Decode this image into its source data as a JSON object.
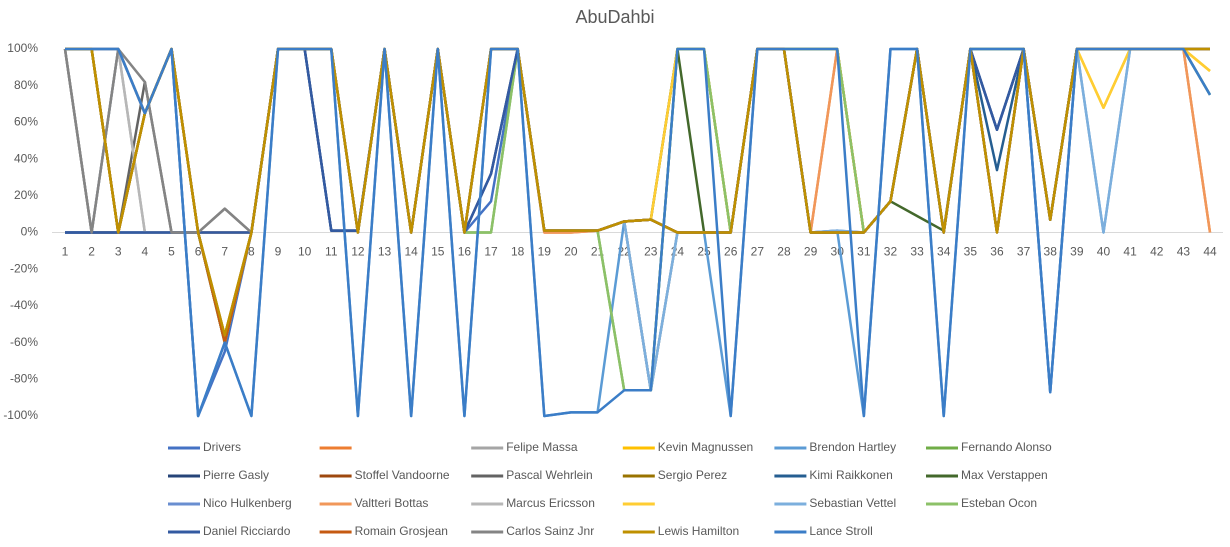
{
  "chart_data": {
    "type": "line",
    "title": "AbuDahbi",
    "categories": [
      1,
      2,
      3,
      4,
      5,
      6,
      7,
      8,
      9,
      10,
      11,
      12,
      13,
      14,
      15,
      16,
      17,
      18,
      19,
      20,
      21,
      22,
      23,
      24,
      25,
      26,
      27,
      28,
      29,
      30,
      31,
      32,
      33,
      34,
      35,
      36,
      37,
      38,
      39,
      40,
      41,
      42,
      43,
      44
    ],
    "ylim": [
      -100,
      100
    ],
    "yticks": [
      {
        "value": -100,
        "label": "-100%"
      },
      {
        "value": -80,
        "label": "-80%"
      },
      {
        "value": -60,
        "label": "-60%"
      },
      {
        "value": -40,
        "label": "-40%"
      },
      {
        "value": -20,
        "label": "-20%"
      },
      {
        "value": 0,
        "label": "0%"
      },
      {
        "value": 20,
        "label": "20%"
      },
      {
        "value": 40,
        "label": "40%"
      },
      {
        "value": 60,
        "label": "60%"
      },
      {
        "value": 80,
        "label": "80%"
      },
      {
        "value": 100,
        "label": "100%"
      }
    ],
    "grid": false,
    "legend": "bottom",
    "series": [
      {
        "name": "Drivers",
        "color": "#4472C4",
        "values": [
          0,
          0,
          100,
          65,
          100,
          -100,
          -65,
          0,
          100,
          100,
          1,
          1,
          100,
          0,
          100,
          0,
          17,
          100,
          1,
          1,
          1,
          6,
          -86,
          100,
          100,
          0,
          100,
          100,
          100,
          100,
          0,
          17,
          100,
          0,
          100,
          56,
          100,
          -87,
          100,
          100,
          100,
          100,
          100,
          75
        ]
      },
      {
        "name": null,
        "color": "#ED7D31",
        "values": [
          100,
          100,
          100,
          65,
          100,
          0,
          0,
          0,
          100,
          100,
          100,
          0,
          100,
          0,
          100,
          0,
          100,
          100,
          0,
          0,
          1,
          6,
          7,
          0,
          0,
          0,
          100,
          100,
          0,
          100,
          0,
          17,
          100,
          0,
          100,
          0,
          100,
          7,
          100,
          100,
          100,
          100,
          100,
          0
        ]
      },
      {
        "name": "Felipe Massa",
        "color": "#A5A5A5",
        "values": [
          100,
          0,
          100,
          0,
          0,
          0,
          0,
          0,
          100,
          100,
          100,
          0,
          100,
          0,
          100,
          0,
          100,
          100,
          1,
          1,
          1,
          6,
          -86,
          0,
          0,
          0,
          100,
          100,
          0,
          0,
          0,
          17,
          100,
          0,
          100,
          100,
          100,
          7,
          100,
          100,
          100,
          100,
          100,
          100
        ]
      },
      {
        "name": "Kevin Magnussen",
        "color": "#FFC000",
        "values": [
          100,
          100,
          0,
          65,
          100,
          0,
          -60,
          0,
          100,
          100,
          100,
          0,
          100,
          0,
          100,
          0,
          100,
          100,
          1,
          1,
          1,
          6,
          7,
          100,
          100,
          0,
          100,
          100,
          100,
          100,
          0,
          17,
          100,
          0,
          100,
          100,
          100,
          7,
          100,
          68,
          100,
          100,
          100,
          88
        ]
      },
      {
        "name": "Brendon Hartley",
        "color": "#5B9BD5",
        "values": [
          100,
          100,
          100,
          65,
          100,
          -100,
          -60,
          -100,
          100,
          100,
          100,
          -100,
          100,
          -100,
          100,
          -100,
          100,
          100,
          -100,
          -98,
          -98,
          6,
          -86,
          0,
          0,
          -100,
          100,
          100,
          0,
          1,
          -100,
          100,
          100,
          -100,
          100,
          100,
          100,
          -87,
          100,
          0,
          100,
          100,
          100,
          75
        ]
      },
      {
        "name": "Fernando Alonso",
        "color": "#70AD47",
        "values": [
          100,
          100,
          0,
          65,
          100,
          0,
          -60,
          0,
          100,
          100,
          100,
          0,
          100,
          0,
          100,
          0,
          0,
          100,
          1,
          1,
          1,
          -86,
          -86,
          100,
          100,
          0,
          100,
          100,
          100,
          100,
          0,
          17,
          100,
          0,
          100,
          100,
          100,
          7,
          100,
          100,
          100,
          100,
          100,
          75
        ]
      },
      {
        "name": "Pierre Gasly",
        "color": "#264478",
        "values": [
          0,
          0,
          0,
          0,
          0,
          0,
          0,
          0,
          100,
          100,
          1,
          1,
          100,
          0,
          100,
          0,
          32,
          100,
          1,
          1,
          1,
          6,
          7,
          0,
          0,
          0,
          100,
          100,
          0,
          0,
          0,
          17,
          100,
          0,
          100,
          56,
          100,
          7,
          100,
          100,
          100,
          100,
          100,
          100
        ]
      },
      {
        "name": "Stoffel Vandoorne",
        "color": "#9E480E",
        "values": [
          100,
          100,
          0,
          65,
          100,
          0,
          -60,
          0,
          100,
          100,
          100,
          0,
          100,
          0,
          100,
          0,
          100,
          100,
          1,
          1,
          1,
          6,
          7,
          0,
          0,
          0,
          100,
          100,
          0,
          0,
          0,
          17,
          100,
          0,
          100,
          0,
          100,
          7,
          100,
          100,
          100,
          100,
          100,
          100
        ]
      },
      {
        "name": "Pascal Wehrlein",
        "color": "#636363",
        "values": [
          100,
          0,
          0,
          82,
          0,
          0,
          13,
          0,
          100,
          100,
          100,
          0,
          100,
          0,
          100,
          0,
          100,
          100,
          1,
          1,
          1,
          6,
          7,
          0,
          0,
          0,
          100,
          100,
          0,
          0,
          0,
          17,
          100,
          0,
          100,
          0,
          100,
          7,
          100,
          100,
          100,
          100,
          100,
          100
        ]
      },
      {
        "name": "Sergio Perez",
        "color": "#997300",
        "values": [
          100,
          100,
          0,
          65,
          100,
          0,
          -56,
          0,
          100,
          100,
          100,
          0,
          100,
          0,
          100,
          0,
          100,
          100,
          1,
          1,
          1,
          6,
          7,
          0,
          0,
          0,
          100,
          100,
          0,
          0,
          0,
          17,
          100,
          0,
          100,
          0,
          100,
          7,
          100,
          100,
          100,
          100,
          100,
          100
        ]
      },
      {
        "name": "Kimi Raikkonen",
        "color": "#255E91",
        "values": [
          100,
          100,
          100,
          65,
          100,
          0,
          -60,
          0,
          100,
          100,
          100,
          0,
          100,
          0,
          100,
          0,
          100,
          100,
          1,
          1,
          1,
          6,
          7,
          0,
          0,
          0,
          100,
          100,
          0,
          0,
          0,
          17,
          100,
          0,
          100,
          34,
          100,
          7,
          100,
          100,
          100,
          100,
          100,
          100
        ]
      },
      {
        "name": "Max Verstappen",
        "color": "#43682B",
        "values": [
          100,
          100,
          0,
          65,
          100,
          0,
          -60,
          0,
          100,
          100,
          100,
          0,
          100,
          0,
          100,
          0,
          100,
          100,
          1,
          1,
          1,
          6,
          7,
          100,
          0,
          0,
          100,
          100,
          0,
          0,
          0,
          17,
          9,
          1,
          100,
          100,
          100,
          7,
          100,
          100,
          100,
          100,
          100,
          100
        ]
      },
      {
        "name": "Nico Hulkenberg",
        "color": "#698ED0",
        "values": [
          100,
          100,
          0,
          65,
          100,
          0,
          -60,
          0,
          100,
          100,
          100,
          0,
          100,
          0,
          100,
          0,
          100,
          100,
          1,
          1,
          1,
          6,
          7,
          0,
          0,
          0,
          100,
          100,
          0,
          1,
          0,
          17,
          100,
          0,
          100,
          0,
          100,
          7,
          100,
          100,
          100,
          100,
          100,
          100
        ]
      },
      {
        "name": "Valtteri Bottas",
        "color": "#F1975A",
        "values": [
          100,
          100,
          100,
          65,
          100,
          0,
          0,
          0,
          100,
          100,
          100,
          0,
          100,
          0,
          100,
          0,
          100,
          100,
          0,
          0,
          1,
          6,
          7,
          0,
          0,
          0,
          100,
          100,
          0,
          100,
          0,
          17,
          100,
          0,
          100,
          0,
          100,
          7,
          100,
          100,
          100,
          100,
          100,
          0
        ]
      },
      {
        "name": "Marcus Ericsson",
        "color": "#B7B7B7",
        "values": [
          100,
          0,
          100,
          0,
          0,
          0,
          0,
          0,
          100,
          100,
          100,
          0,
          100,
          0,
          100,
          0,
          100,
          100,
          1,
          1,
          1,
          6,
          -86,
          0,
          0,
          0,
          100,
          100,
          0,
          0,
          0,
          17,
          100,
          0,
          100,
          100,
          100,
          7,
          100,
          100,
          100,
          100,
          100,
          100
        ]
      },
      {
        "name": null,
        "color": "#FFCD33",
        "values": [
          100,
          100,
          0,
          65,
          100,
          0,
          -60,
          0,
          100,
          100,
          100,
          0,
          100,
          0,
          100,
          0,
          100,
          100,
          1,
          1,
          1,
          6,
          7,
          100,
          100,
          0,
          100,
          100,
          100,
          100,
          0,
          17,
          100,
          0,
          100,
          100,
          100,
          7,
          100,
          68,
          100,
          100,
          100,
          88
        ]
      },
      {
        "name": "Sebastian Vettel",
        "color": "#7CAFDD",
        "values": [
          100,
          100,
          100,
          65,
          100,
          0,
          -60,
          0,
          100,
          100,
          100,
          0,
          100,
          0,
          100,
          0,
          100,
          100,
          1,
          1,
          1,
          6,
          -86,
          0,
          0,
          0,
          100,
          100,
          0,
          1,
          0,
          17,
          100,
          0,
          100,
          100,
          100,
          7,
          100,
          0,
          100,
          100,
          100,
          100
        ]
      },
      {
        "name": "Esteban Ocon",
        "color": "#8CC168",
        "values": [
          100,
          100,
          0,
          65,
          100,
          0,
          -60,
          0,
          100,
          100,
          100,
          0,
          100,
          0,
          100,
          0,
          0,
          100,
          1,
          1,
          1,
          -86,
          -86,
          100,
          100,
          0,
          100,
          100,
          100,
          100,
          0,
          17,
          100,
          0,
          100,
          100,
          100,
          7,
          100,
          100,
          100,
          100,
          100,
          100
        ]
      },
      {
        "name": "Daniel Ricciardo",
        "color": "#335AA1",
        "values": [
          0,
          0,
          0,
          0,
          0,
          0,
          0,
          0,
          100,
          100,
          1,
          1,
          100,
          0,
          100,
          0,
          32,
          100,
          1,
          1,
          1,
          6,
          7,
          0,
          0,
          0,
          100,
          100,
          0,
          0,
          0,
          17,
          100,
          0,
          100,
          56,
          100,
          7,
          100,
          100,
          100,
          100,
          100,
          100
        ]
      },
      {
        "name": "Romain Grosjean",
        "color": "#C55A11",
        "values": [
          100,
          100,
          0,
          65,
          100,
          0,
          -60,
          0,
          100,
          100,
          100,
          0,
          100,
          0,
          100,
          0,
          100,
          100,
          1,
          1,
          1,
          6,
          7,
          0,
          0,
          0,
          100,
          100,
          0,
          0,
          0,
          17,
          100,
          0,
          100,
          0,
          100,
          7,
          100,
          100,
          100,
          100,
          100,
          100
        ]
      },
      {
        "name": "Carlos Sainz Jnr",
        "color": "#848484",
        "values": [
          100,
          0,
          100,
          82,
          0,
          0,
          13,
          0,
          100,
          100,
          100,
          0,
          100,
          0,
          100,
          0,
          100,
          100,
          1,
          1,
          1,
          6,
          7,
          0,
          0,
          0,
          100,
          100,
          0,
          0,
          0,
          17,
          100,
          0,
          100,
          0,
          100,
          7,
          100,
          100,
          100,
          100,
          100,
          100
        ]
      },
      {
        "name": "Lewis Hamilton",
        "color": "#BF9000",
        "values": [
          100,
          100,
          0,
          65,
          100,
          0,
          -56,
          0,
          100,
          100,
          100,
          0,
          100,
          0,
          100,
          0,
          100,
          100,
          1,
          1,
          1,
          6,
          7,
          0,
          0,
          0,
          100,
          100,
          0,
          0,
          0,
          17,
          100,
          0,
          100,
          0,
          100,
          7,
          100,
          100,
          100,
          100,
          100,
          100
        ]
      },
      {
        "name": "Lance Stroll",
        "color": "#3B7DC7",
        "values": [
          100,
          100,
          100,
          65,
          100,
          -100,
          -60,
          -100,
          100,
          100,
          100,
          -100,
          100,
          -100,
          100,
          -100,
          100,
          100,
          -100,
          -98,
          -98,
          -86,
          -86,
          100,
          100,
          -100,
          100,
          100,
          100,
          100,
          -100,
          100,
          100,
          -100,
          100,
          100,
          100,
          -87,
          100,
          100,
          100,
          100,
          100,
          75
        ]
      }
    ]
  }
}
